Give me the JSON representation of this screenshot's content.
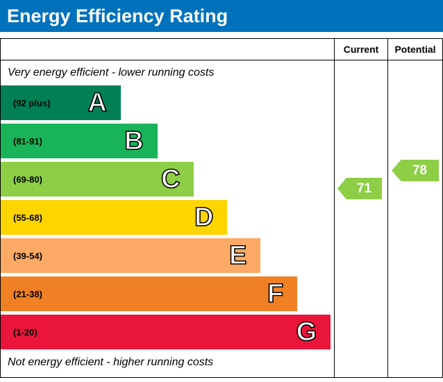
{
  "title": "Energy Efficiency Rating",
  "header": {
    "current_label": "Current",
    "potential_label": "Potential"
  },
  "captions": {
    "top": "Very energy efficient - lower running costs",
    "bottom": "Not energy efficient - higher running costs"
  },
  "bands": [
    {
      "letter": "A",
      "range": "(92 plus)",
      "color": "#008054",
      "width_pct": 36
    },
    {
      "letter": "B",
      "range": "(81-91)",
      "color": "#19b459",
      "width_pct": 47
    },
    {
      "letter": "C",
      "range": "(69-80)",
      "color": "#8dce46",
      "width_pct": 58
    },
    {
      "letter": "D",
      "range": "(55-68)",
      "color": "#ffd500",
      "width_pct": 68
    },
    {
      "letter": "E",
      "range": "(39-54)",
      "color": "#fcaa65",
      "width_pct": 78
    },
    {
      "letter": "F",
      "range": "(21-38)",
      "color": "#ef8023",
      "width_pct": 89
    },
    {
      "letter": "G",
      "range": "(1-20)",
      "color": "#e9153b",
      "width_pct": 99
    }
  ],
  "indicators": {
    "current": {
      "value": "71",
      "color": "#8dce46"
    },
    "potential": {
      "value": "78",
      "color": "#8dce46"
    }
  },
  "colors": {
    "title_bg": "#0072bc",
    "title_text": "#ffffff",
    "border": "#000000"
  },
  "chart_data": {
    "type": "bar",
    "title": "Energy Efficiency Rating",
    "categories": [
      "A",
      "B",
      "C",
      "D",
      "E",
      "F",
      "G"
    ],
    "ranges": [
      "92 plus",
      "81-91",
      "69-80",
      "55-68",
      "39-54",
      "21-38",
      "1-20"
    ],
    "bar_lengths_relative": [
      0.36,
      0.47,
      0.58,
      0.68,
      0.78,
      0.89,
      0.99
    ],
    "band_colors": [
      "#008054",
      "#19b459",
      "#8dce46",
      "#ffd500",
      "#fcaa65",
      "#ef8023",
      "#e9153b"
    ],
    "current": 71,
    "current_band": "C",
    "potential": 78,
    "potential_band": "C",
    "columns": [
      "Current",
      "Potential"
    ],
    "annotations": [
      "Very energy efficient - lower running costs",
      "Not energy efficient - higher running costs"
    ],
    "legend_position": "none",
    "grid": false
  }
}
